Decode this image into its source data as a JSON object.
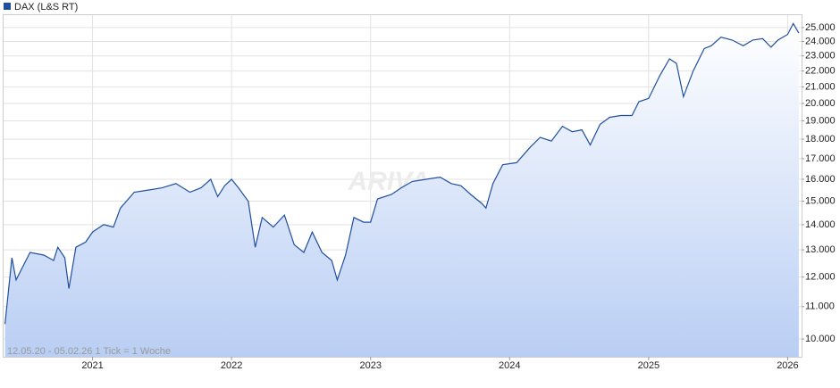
{
  "chart_data": {
    "type": "line",
    "legend_label": "DAX (L&S RT)",
    "footnote": "12.05.20 - 05.02.26   1 Tick = 1 Woche",
    "watermark": "ARIVA",
    "log_scale": true,
    "grid": true,
    "color": "#1f4f9f",
    "x": [
      2020.37,
      2020.42,
      2020.45,
      2020.55,
      2020.65,
      2020.72,
      2020.75,
      2020.8,
      2020.83,
      2020.88,
      2020.95,
      2021.0,
      2021.08,
      2021.15,
      2021.2,
      2021.3,
      2021.4,
      2021.5,
      2021.6,
      2021.7,
      2021.78,
      2021.85,
      2021.9,
      2021.95,
      2022.0,
      2022.05,
      2022.12,
      2022.17,
      2022.22,
      2022.3,
      2022.38,
      2022.45,
      2022.52,
      2022.58,
      2022.65,
      2022.72,
      2022.76,
      2022.82,
      2022.88,
      2022.95,
      2023.0,
      2023.05,
      2023.15,
      2023.22,
      2023.3,
      2023.4,
      2023.5,
      2023.58,
      2023.65,
      2023.72,
      2023.8,
      2023.83,
      2023.88,
      2023.95,
      2024.05,
      2024.15,
      2024.22,
      2024.3,
      2024.38,
      2024.45,
      2024.52,
      2024.58,
      2024.65,
      2024.72,
      2024.8,
      2024.88,
      2024.93,
      2025.0,
      2025.08,
      2025.15,
      2025.2,
      2025.25,
      2025.32,
      2025.4,
      2025.45,
      2025.52,
      2025.6,
      2025.68,
      2025.75,
      2025.82,
      2025.88,
      2025.93,
      2026.0,
      2026.04,
      2026.08
    ],
    "values": [
      10450,
      12700,
      11900,
      12900,
      12800,
      12600,
      13100,
      12700,
      11600,
      13100,
      13300,
      13700,
      14000,
      13900,
      14700,
      15400,
      15500,
      15600,
      15800,
      15400,
      15600,
      16000,
      15200,
      15700,
      16000,
      15600,
      15000,
      13100,
      14300,
      13900,
      14400,
      13200,
      12900,
      13700,
      12900,
      12600,
      11900,
      12800,
      14300,
      14100,
      14100,
      15100,
      15300,
      15600,
      15900,
      16000,
      16100,
      15800,
      15700,
      15300,
      14900,
      14700,
      15800,
      16700,
      16800,
      17600,
      18100,
      17900,
      18700,
      18400,
      18500,
      17700,
      18800,
      19200,
      19300,
      19300,
      20100,
      20300,
      21700,
      22800,
      22500,
      20400,
      22000,
      23500,
      23700,
      24300,
      24100,
      23700,
      24100,
      24200,
      23600,
      24100,
      24500,
      25300,
      24600
    ],
    "xlim": [
      2020.36,
      2026.1
    ],
    "xticks": [
      2021,
      2022,
      2023,
      2024,
      2025,
      2026
    ],
    "ylim": [
      9490,
      25930
    ],
    "yticks": [
      {
        "value": 10000,
        "label": "10.000"
      },
      {
        "value": 11000,
        "label": "11.000"
      },
      {
        "value": 12000,
        "label": "12.000"
      },
      {
        "value": 13000,
        "label": "13.000"
      },
      {
        "value": 14000,
        "label": "14.000"
      },
      {
        "value": 15000,
        "label": "15.000"
      },
      {
        "value": 16000,
        "label": "16.000"
      },
      {
        "value": 17000,
        "label": "17.000"
      },
      {
        "value": 18000,
        "label": "18.000"
      },
      {
        "value": 19000,
        "label": "19.000"
      },
      {
        "value": 20000,
        "label": "20.000"
      },
      {
        "value": 21000,
        "label": "21.000"
      },
      {
        "value": 22000,
        "label": "22.000"
      },
      {
        "value": 23000,
        "label": "23.000"
      },
      {
        "value": 24000,
        "label": "24.000"
      },
      {
        "value": 25000,
        "label": "25.000"
      }
    ]
  }
}
